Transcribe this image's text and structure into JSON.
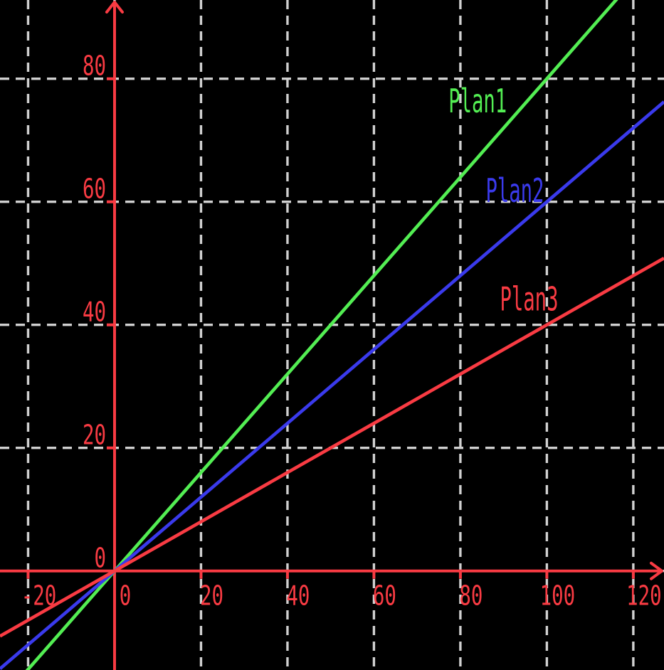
{
  "chart_data": {
    "type": "line",
    "background": "#000000",
    "axis_color": "#f93b43",
    "grid_color": "#d0d0d0",
    "grid": true,
    "grid_style": "dashed",
    "xlim": [
      -26.5,
      127.1
    ],
    "ylim": [
      -16.1,
      92.8
    ],
    "x_ticks": [
      -20,
      0,
      20,
      40,
      60,
      80,
      100,
      120
    ],
    "y_ticks": [
      0,
      20,
      40,
      60,
      80
    ],
    "x_tick_labels": [
      "-20",
      "0",
      "20",
      "40",
      "60",
      "80",
      "100",
      "120"
    ],
    "y_tick_labels": [
      "0",
      "20",
      "40",
      "60",
      "80"
    ],
    "legend_position": "inline-labels",
    "series": [
      {
        "name": "Plan1",
        "color": "#53ee53",
        "slope": 0.8,
        "intercept": 0,
        "label_pos": [
          84.0,
          76.4
        ]
      },
      {
        "name": "Plan2",
        "color": "#3a3aec",
        "slope": 0.6,
        "intercept": 0,
        "label_pos": [
          92.6,
          61.8
        ]
      },
      {
        "name": "Plan3",
        "color": "#f93b43",
        "slope": 0.4,
        "intercept": 0,
        "label_pos": [
          95.9,
          44.2
        ]
      }
    ]
  }
}
